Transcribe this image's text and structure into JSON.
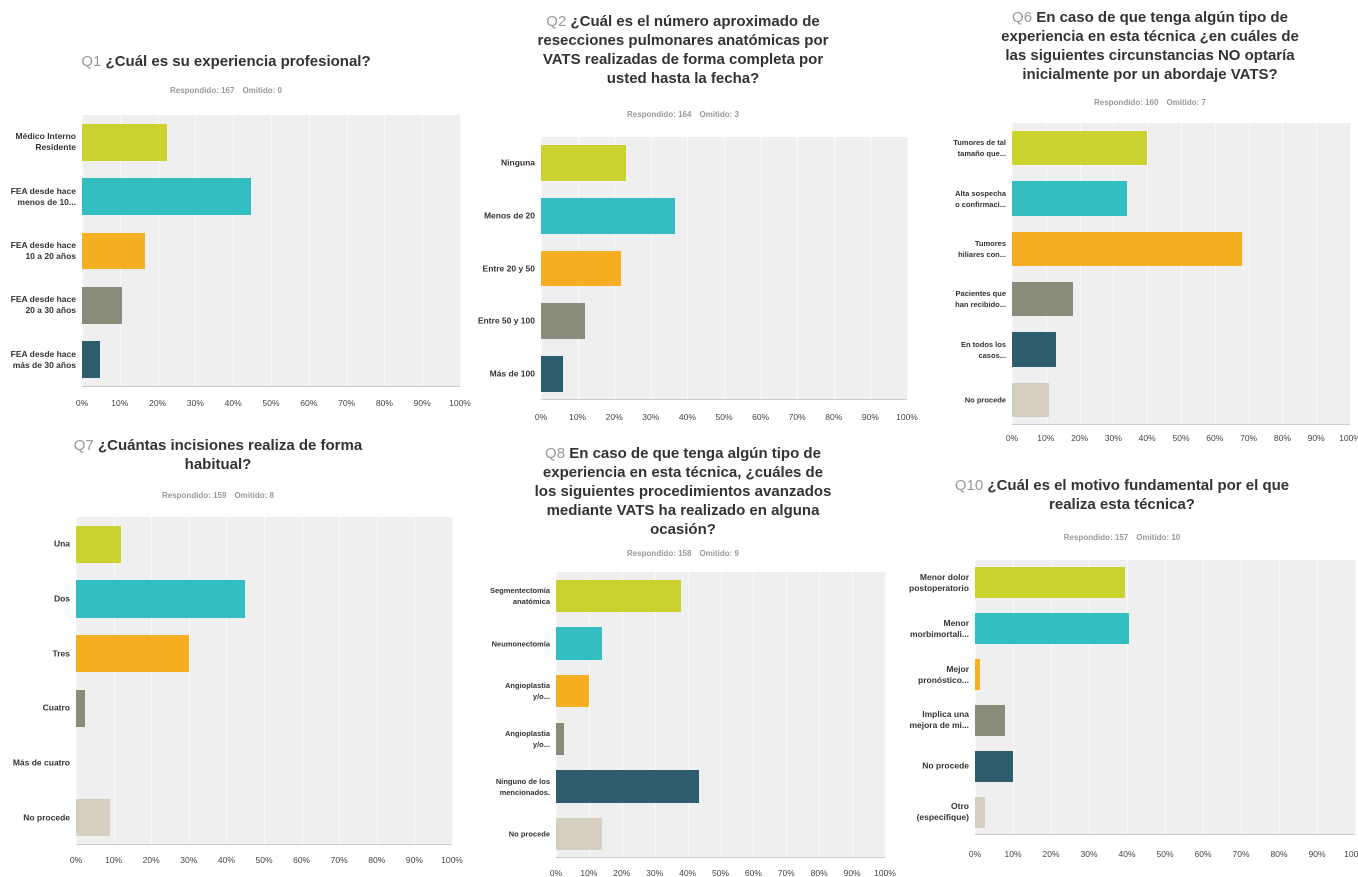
{
  "chart_data": [
    {
      "type": "barh",
      "qnum": "Q1",
      "title": "¿Cuál es su experiencia profesional?",
      "answered": "Respondido: 167",
      "skipped": "Omitido: 0",
      "categories": [
        "Médico Interno\nResidente",
        "FEA desde hace\nmenos de 10...",
        "FEA desde hace\n10 a 20 años",
        "FEA desde hace\n20 a 30 años",
        "FEA desde hace\nmás de 30 años"
      ],
      "values": [
        22.5,
        44.7,
        16.7,
        10.6,
        4.8
      ],
      "colors": [
        "#c9d22e",
        "#33bfc1",
        "#f6ae22",
        "#8b8b7b",
        "#2e5e6d"
      ],
      "xlim": [
        0,
        100
      ],
      "xticks": [
        {
          "value": 0,
          "label": "0%"
        },
        {
          "value": 10,
          "label": "10%"
        },
        {
          "value": 20,
          "label": "20%"
        },
        {
          "value": 30,
          "label": "30%"
        },
        {
          "value": 40,
          "label": "40%"
        },
        {
          "value": 50,
          "label": "50%"
        },
        {
          "value": 60,
          "label": "60%"
        },
        {
          "value": 70,
          "label": "70%"
        },
        {
          "value": 80,
          "label": "80%"
        },
        {
          "value": 90,
          "label": "90%"
        },
        {
          "value": 100,
          "label": "100%"
        }
      ],
      "grid": true
    },
    {
      "type": "barh",
      "qnum": "Q2",
      "title": "¿Cuál es el número aproximado de resecciones pulmonares anatómicas por VATS realizadas de forma completa por usted hasta la fecha?",
      "answered": "Respondido: 164",
      "skipped": "Omitido: 3",
      "categories": [
        "Ninguna",
        "Menos de 20",
        "Entre 20 y 50",
        "Entre 50 y 100",
        "Más de 100"
      ],
      "values": [
        23.2,
        36.6,
        21.9,
        12,
        6
      ],
      "colors": [
        "#c9d22e",
        "#33bfc1",
        "#f6ae22",
        "#8b8b7b",
        "#2e5e6d"
      ],
      "xlim": [
        0,
        100
      ],
      "xticks": [
        {
          "value": 0,
          "label": "0%"
        },
        {
          "value": 10,
          "label": "10%"
        },
        {
          "value": 20,
          "label": "20%"
        },
        {
          "value": 30,
          "label": "30%"
        },
        {
          "value": 40,
          "label": "40%"
        },
        {
          "value": 50,
          "label": "50%"
        },
        {
          "value": 60,
          "label": "60%"
        },
        {
          "value": 70,
          "label": "70%"
        },
        {
          "value": 80,
          "label": "80%"
        },
        {
          "value": 90,
          "label": "90%"
        },
        {
          "value": 100,
          "label": "100%"
        }
      ],
      "grid": true
    },
    {
      "type": "barh",
      "qnum": "Q6",
      "title": "En caso de que tenga algún tipo de experiencia en esta técnica ¿en cuáles de las siguientes circunstancias NO optaría inicialmente por un abordaje VATS?",
      "answered": "Respondido: 160",
      "skipped": "Omitido: 7",
      "categories": [
        "Tumores de tal\ntamaño que...",
        "Alta sospecha\no confirmaci...",
        "Tumores\nhiliares con...",
        "Pacientes que\nhan recibido...",
        "En todos los\ncasos...",
        "No procede"
      ],
      "values": [
        40,
        34,
        68,
        18,
        13,
        11
      ],
      "colors": [
        "#c9d22e",
        "#33bfc1",
        "#f6ae22",
        "#8b8b7b",
        "#2e5e6d",
        "#d4cfc0"
      ],
      "xlim": [
        0,
        100
      ],
      "xticks": [
        {
          "value": 0,
          "label": "0%"
        },
        {
          "value": 10,
          "label": "10%"
        },
        {
          "value": 20,
          "label": "20%"
        },
        {
          "value": 30,
          "label": "30%"
        },
        {
          "value": 40,
          "label": "40%"
        },
        {
          "value": 50,
          "label": "50%"
        },
        {
          "value": 60,
          "label": "60%"
        },
        {
          "value": 70,
          "label": "70%"
        },
        {
          "value": 80,
          "label": "80%"
        },
        {
          "value": 90,
          "label": "90%"
        },
        {
          "value": 100,
          "label": "100%"
        }
      ],
      "grid": true
    },
    {
      "type": "barh",
      "qnum": "Q7",
      "title": "¿Cuántas incisiones realiza de forma habitual?",
      "answered": "Respondido: 159",
      "skipped": "Omitido: 8",
      "categories": [
        "Una",
        "Dos",
        "Tres",
        "Cuatro",
        "Más de cuatro",
        "No procede"
      ],
      "values": [
        12,
        45,
        30,
        2.4,
        0,
        9
      ],
      "colors": [
        "#c9d22e",
        "#33bfc1",
        "#f6ae22",
        "#8b8b7b",
        "#2e5e6d",
        "#d4cfc0"
      ],
      "xlim": [
        0,
        100
      ],
      "xticks": [
        {
          "value": 0,
          "label": "0%"
        },
        {
          "value": 10,
          "label": "10%"
        },
        {
          "value": 20,
          "label": "20%"
        },
        {
          "value": 30,
          "label": "30%"
        },
        {
          "value": 40,
          "label": "40%"
        },
        {
          "value": 50,
          "label": "50%"
        },
        {
          "value": 60,
          "label": "60%"
        },
        {
          "value": 70,
          "label": "70%"
        },
        {
          "value": 80,
          "label": "80%"
        },
        {
          "value": 90,
          "label": "90%"
        },
        {
          "value": 100,
          "label": "100%"
        }
      ],
      "grid": true
    },
    {
      "type": "barh",
      "qnum": "Q8",
      "title": "En caso de que tenga algún tipo de experiencia en esta técnica, ¿cuáles de los siguientes procedimientos avanzados mediante VATS ha realizado en alguna ocasión?",
      "answered": "Respondido: 158",
      "skipped": "Omitido: 9",
      "categories": [
        "Segmentectomía\nanatómica",
        "Neumonectomía",
        "Angioplastia\ny/o...",
        "Angioplastia\ny/o...",
        "Ninguno de los\nmencionados.",
        "No procede"
      ],
      "values": [
        38,
        14,
        10,
        2.4,
        43.5,
        14
      ],
      "colors": [
        "#c9d22e",
        "#33bfc1",
        "#f6ae22",
        "#8b8b7b",
        "#2e5e6d",
        "#d4cfc0"
      ],
      "xlim": [
        0,
        100
      ],
      "xticks": [
        {
          "value": 0,
          "label": "0%"
        },
        {
          "value": 10,
          "label": "10%"
        },
        {
          "value": 20,
          "label": "20%"
        },
        {
          "value": 30,
          "label": "30%"
        },
        {
          "value": 40,
          "label": "40%"
        },
        {
          "value": 50,
          "label": "50%"
        },
        {
          "value": 60,
          "label": "60%"
        },
        {
          "value": 70,
          "label": "70%"
        },
        {
          "value": 80,
          "label": "80%"
        },
        {
          "value": 90,
          "label": "90%"
        },
        {
          "value": 100,
          "label": "100%"
        }
      ],
      "grid": true
    },
    {
      "type": "barh",
      "qnum": "Q10",
      "title": "¿Cuál es el motivo fundamental por el que realiza esta técnica?",
      "answered": "Respondido: 157",
      "skipped": "Omitido: 10",
      "categories": [
        "Menor dolor\npostoperatorio",
        "Menor\nmorbimortali...",
        "Mejor\npronóstico...",
        "Implica una\nmejora de mi...",
        "No procede",
        "Otro\n(especifique)"
      ],
      "values": [
        39.5,
        40.5,
        1.3,
        8,
        10,
        2.5
      ],
      "colors": [
        "#c9d22e",
        "#33bfc1",
        "#f6ae22",
        "#8b8b7b",
        "#2e5e6d",
        "#d4cfc0"
      ],
      "xlim": [
        0,
        100
      ],
      "xticks": [
        {
          "value": 0,
          "label": "0%"
        },
        {
          "value": 10,
          "label": "10%"
        },
        {
          "value": 20,
          "label": "20%"
        },
        {
          "value": 30,
          "label": "30%"
        },
        {
          "value": 40,
          "label": "40%"
        },
        {
          "value": 50,
          "label": "50%"
        },
        {
          "value": 60,
          "label": "60%"
        },
        {
          "value": 70,
          "label": "70%"
        },
        {
          "value": 80,
          "label": "80%"
        },
        {
          "value": 90,
          "label": "90%"
        },
        {
          "value": 100,
          "label": "100%"
        }
      ],
      "grid": true
    }
  ]
}
